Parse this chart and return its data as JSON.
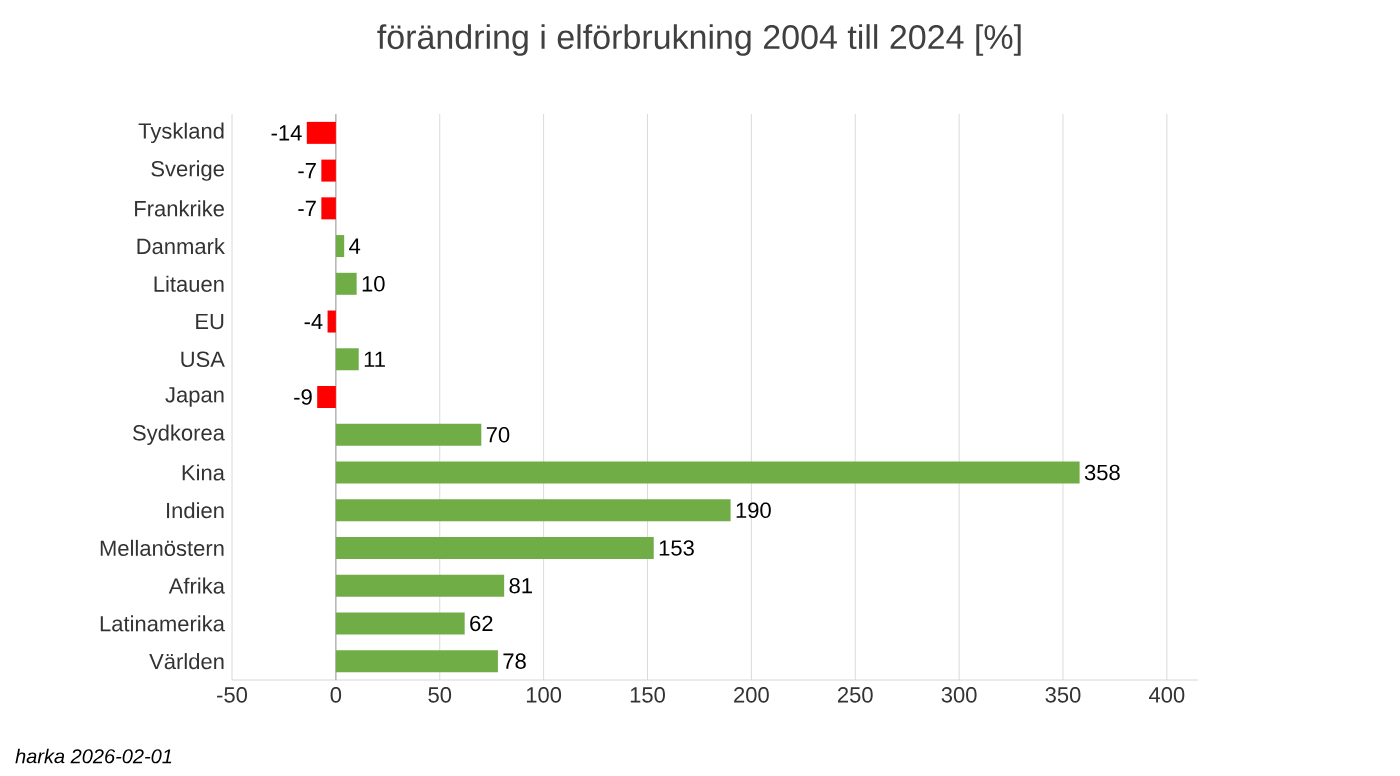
{
  "chart_data": {
    "type": "bar",
    "orientation": "horizontal",
    "title": "förändring i elförbrukning 2004 till 2024 [%]",
    "categories": [
      "Tyskland",
      "Sverige",
      "Frankrike",
      "Danmark",
      "Litauen",
      "EU",
      "USA",
      "Japan",
      "Sydkorea",
      "Kina",
      "Indien",
      "Mellanöstern",
      "Afrika",
      "Latinamerika",
      "Världen"
    ],
    "values": [
      -14,
      -7,
      -7,
      4,
      10,
      -4,
      11,
      -9,
      70,
      358,
      190,
      153,
      81,
      62,
      78
    ],
    "colors": [
      "#ff0000",
      "#ff0000",
      "#ff0000",
      "#70ad47",
      "#70ad47",
      "#ff0000",
      "#70ad47",
      "#ff0000",
      "#70ad47",
      "#70ad47",
      "#70ad47",
      "#70ad47",
      "#70ad47",
      "#70ad47",
      "#70ad47"
    ],
    "xlim": [
      -50,
      415
    ],
    "xticks": [
      -50,
      0,
      50,
      100,
      150,
      200,
      250,
      300,
      350,
      400
    ],
    "grid": "x",
    "data_labels": true,
    "annotations": [
      "harka 2026-02-01"
    ]
  }
}
